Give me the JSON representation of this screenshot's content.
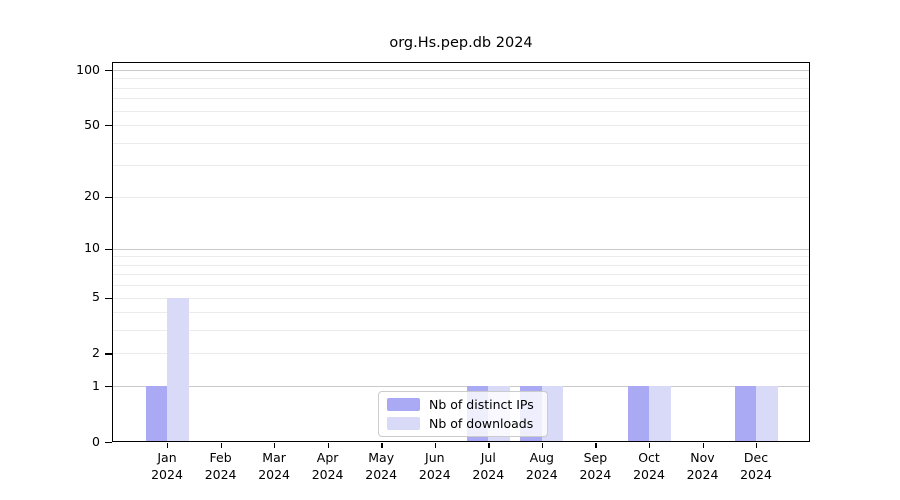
{
  "chart_data": {
    "type": "bar",
    "title": "org.Hs.pep.db 2024",
    "categories": [
      "Jan 2024",
      "Feb 2024",
      "Mar 2024",
      "Apr 2024",
      "May 2024",
      "Jun 2024",
      "Jul 2024",
      "Aug 2024",
      "Sep 2024",
      "Oct 2024",
      "Nov 2024",
      "Dec 2024"
    ],
    "series": [
      {
        "name": "Nb of distinct IPs",
        "color": "#a9a9f4",
        "values": [
          1,
          0,
          0,
          0,
          0,
          0,
          1,
          1,
          0,
          1,
          0,
          1
        ]
      },
      {
        "name": "Nb of downloads",
        "color": "#d9d9f8",
        "values": [
          5,
          0,
          0,
          0,
          0,
          0,
          1,
          1,
          0,
          1,
          0,
          1
        ]
      }
    ],
    "yscale": "log(value+1)",
    "ylim": [
      0,
      110
    ],
    "y_ticks": [
      0,
      1,
      2,
      5,
      10,
      20,
      50,
      100
    ],
    "y_major_gridlines": [
      1,
      10,
      100
    ],
    "y_minor_gridlines": [
      2,
      3,
      4,
      5,
      6,
      7,
      8,
      9,
      20,
      30,
      40,
      50,
      60,
      70,
      80,
      90
    ],
    "grid": true,
    "legend_position": "lower-center-inside",
    "colors": {
      "axis": "#000000",
      "major_grid": "#c9c9c9",
      "minor_grid": "#ececec",
      "background": "#ffffff"
    }
  }
}
